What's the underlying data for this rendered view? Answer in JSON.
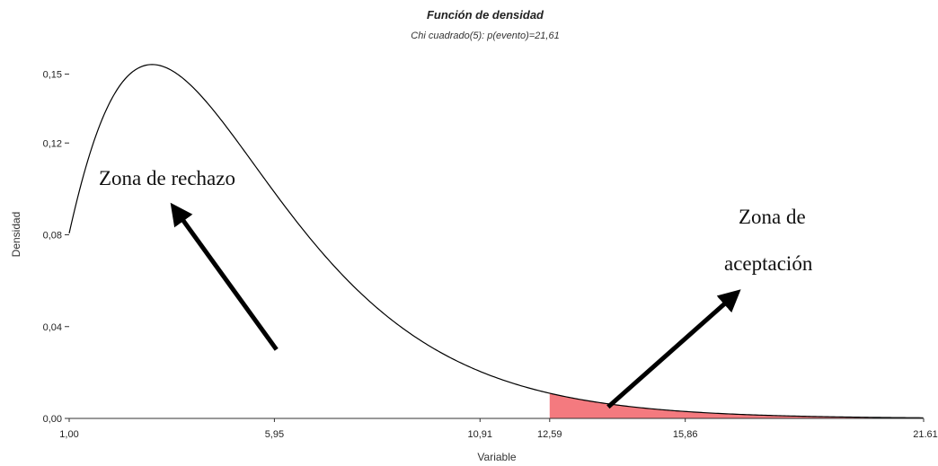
{
  "chart_data": {
    "type": "area",
    "title": "Función de densidad",
    "subtitle": "Chi cuadrado(5): p(evento)=21,61",
    "xlabel": "Variable",
    "ylabel": "Densidad",
    "xlim": [
      1.0,
      21.61
    ],
    "ylim": [
      0.0,
      0.16
    ],
    "y_ticks": [
      {
        "value": 0.0,
        "label": "0,00"
      },
      {
        "value": 0.04,
        "label": "0,04"
      },
      {
        "value": 0.08,
        "label": "0,08"
      },
      {
        "value": 0.12,
        "label": "0,12"
      },
      {
        "value": 0.15,
        "label": "0,15"
      }
    ],
    "x_ticks": [
      {
        "value": 1.0,
        "label": "1,00"
      },
      {
        "value": 5.95,
        "label": "5,95"
      },
      {
        "value": 10.91,
        "label": "10,91"
      },
      {
        "value": 12.59,
        "label": "12,59"
      },
      {
        "value": 15.86,
        "label": "15,86"
      },
      {
        "value": 21.61,
        "label": "21.61"
      }
    ],
    "distribution": {
      "name": "Chi cuadrado",
      "df": 5
    },
    "shaded_region": {
      "from": 12.59,
      "to": 20.8,
      "color": "#f47a7f"
    },
    "curve_color": "#000000",
    "annotations": [
      {
        "text": "Zona de rechazo",
        "arrow_from": [
          6.0,
          0.03
        ],
        "arrow_to": [
          3.6,
          0.09
        ]
      },
      {
        "text": "Zona de",
        "arrow_from": null,
        "arrow_to": null
      },
      {
        "text": "aceptación",
        "arrow_from": [
          14.0,
          0.005
        ],
        "arrow_to": [
          17.0,
          0.053
        ]
      }
    ]
  }
}
